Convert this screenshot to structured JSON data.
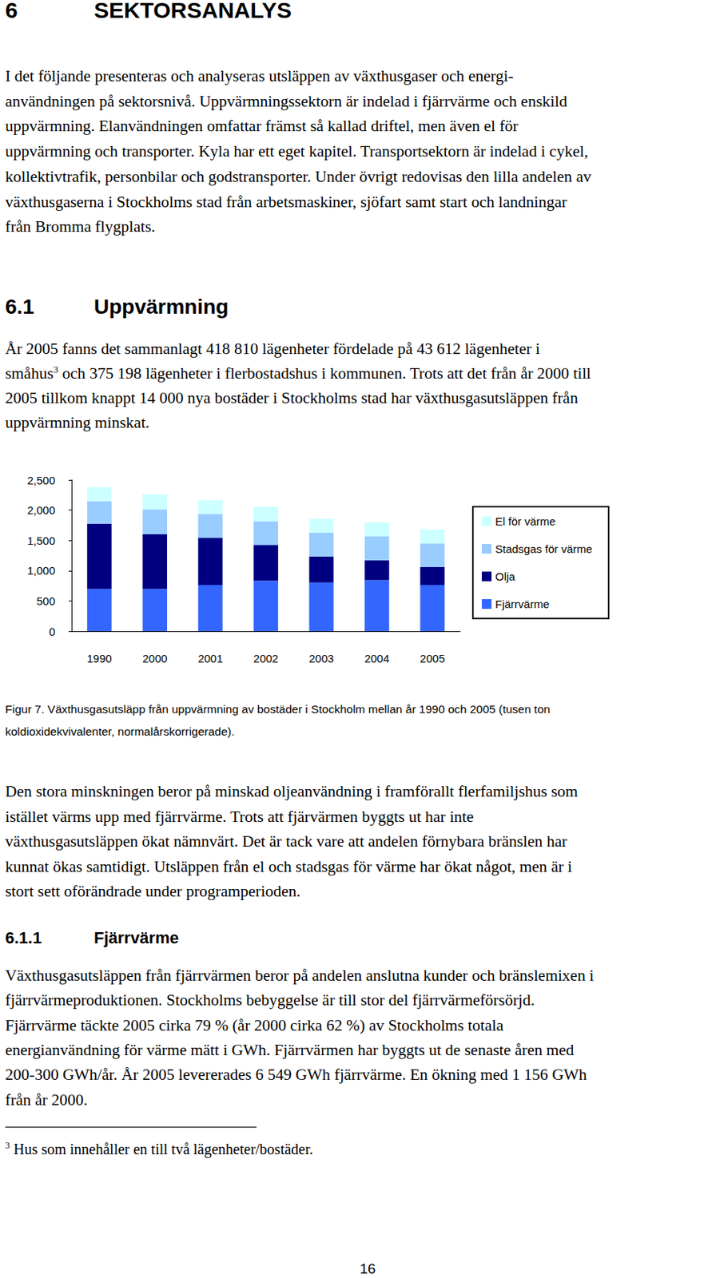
{
  "document": {
    "heading": {
      "number": "6",
      "text": "SEKTORSANALYS"
    },
    "intro": [
      "I det följande presenteras och analyseras utsläppen av växthusgaser och energi-",
      "användningen på sektorsnivå. Uppvärmningssektorn är indelad i fjärrvärme och enskild",
      "uppvärmning. Elanvändningen omfattar främst så kallad driftel, men även el för",
      "uppvärmning och transporter. Kyla har ett eget kapitel. Transportsektorn är indelad i cykel,",
      "kollektivtrafik, personbilar och godstransporter. Under övrigt redovisas den lilla andelen av",
      "växthusgaserna i Stockholms stad från arbetsmaskiner, sjöfart samt start och landningar",
      "från Bromma flygplats."
    ],
    "section": {
      "number": "6.1",
      "text": "Uppvärmning"
    },
    "section_text": [
      "År 2005 fanns det sammanlagt 418 810 lägenheter fördelade på 43 612 lägenheter i",
      {
        "before": "småhus",
        "footnote_ref": "3",
        "after": " och 375 198 lägenheter i flerbostadshus i kommunen. Trots att det från år 2000 till"
      },
      "2005 tillkom knappt 14 000 nya bostäder i Stockholms stad har växthusgasutsläppen från",
      "uppvärmning minskat."
    ],
    "caption": [
      "Figur 7. Växthusgasutsläpp från uppvärmning av bostäder i Stockholm mellan år 1990 och 2005 (tusen ton",
      "koldioxidekvivalenter, normalårskorrigerade)."
    ],
    "after_chart": [
      "Den stora minskningen beror på minskad oljeanvändning i framförallt flerfamiljshus som",
      "istället värms upp med fjärrvärme. Trots att fjärvärmen byggts ut har inte",
      "växthusgasutsläppen ökat nämnvärt. Det är tack vare att andelen förnybara bränslen har",
      "kunnat ökas samtidigt. Utsläppen från el och stadsgas för värme har ökat något, men är i",
      "stort sett oförändrade under programperioden."
    ],
    "subsection": {
      "number": "6.1.1",
      "text": "Fjärrvärme"
    },
    "subsection_text": [
      "Växthusgasutsläppen från fjärrvärmen beror på andelen anslutna kunder och bränslemixen i",
      "fjärrvärmeproduktionen. Stockholms bebyggelse är till stor del fjärrvärmeförsörjd.",
      "Fjärrvärme täckte 2005 cirka 79 % (år 2000 cirka 62 %) av Stockholms totala",
      "energianvändning för värme mätt i GWh. Fjärrvärmen har byggts ut de senaste åren med",
      "200-300 GWh/år. År 2005 levererades 6 549 GWh fjärrvärme. En ökning med 1 156 GWh",
      "från år 2000."
    ],
    "footnote": {
      "mark": "3",
      "text": "Hus som innehåller en till två lägenheter/bostäder."
    },
    "page_number": "16"
  },
  "chart_data": {
    "type": "bar",
    "stacked": true,
    "grid": false,
    "legend": "right",
    "categories": [
      "1990",
      "2000",
      "2001",
      "2002",
      "2003",
      "2004",
      "2005"
    ],
    "series": [
      {
        "name": "Fjärrvärme",
        "color": "#3366ff",
        "values": [
          700,
          700,
          765,
          835,
          805,
          845,
          765
        ]
      },
      {
        "name": "Olja",
        "color": "#000080",
        "values": [
          1075,
          900,
          780,
          590,
          430,
          325,
          295
        ]
      },
      {
        "name": "Stadsgas för värme",
        "color": "#99ccff",
        "values": [
          375,
          415,
          390,
          390,
          390,
          400,
          390
        ]
      },
      {
        "name": "El för värme",
        "color": "#ccffff",
        "values": [
          230,
          245,
          230,
          240,
          230,
          230,
          230
        ]
      }
    ],
    "ylim": [
      0,
      2500
    ],
    "yticks": [
      0,
      500,
      1000,
      1500,
      2000,
      2500
    ]
  }
}
